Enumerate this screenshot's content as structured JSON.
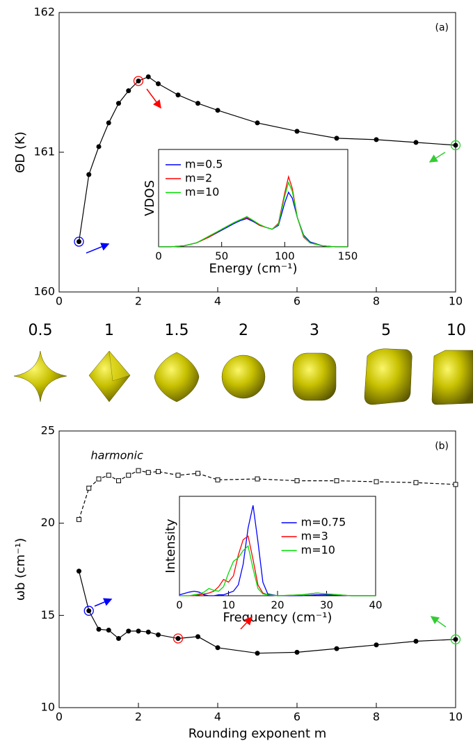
{
  "chart_data": [
    {
      "type": "line",
      "panel_label": "(a)",
      "ylabel": "ΘD (K)",
      "x": [
        0.5,
        0.75,
        1,
        1.25,
        1.5,
        1.75,
        2,
        2.25,
        2.5,
        3,
        3.5,
        4,
        5,
        6,
        7,
        8,
        9,
        10
      ],
      "series": [
        {
          "color": "#000000",
          "marker": "circle",
          "values": [
            160.36,
            160.84,
            161.04,
            161.21,
            161.35,
            161.44,
            161.51,
            161.54,
            161.49,
            161.41,
            161.35,
            161.3,
            161.21,
            161.15,
            161.1,
            161.09,
            161.07,
            161.05
          ],
          "ring_colors": [
            "#0000ff",
            null,
            null,
            null,
            null,
            null,
            "#ff0000",
            null,
            null,
            null,
            null,
            null,
            null,
            null,
            null,
            null,
            null,
            "#33cc33"
          ]
        }
      ],
      "xlim": [
        0,
        10
      ],
      "xticks": [
        0,
        2,
        4,
        6,
        8,
        10
      ],
      "ylim": [
        160,
        162
      ],
      "yticks": [
        160,
        161,
        162
      ]
    },
    {
      "type": "line",
      "xlabel": "Energy (cm⁻¹)",
      "ylabel": "VDOS",
      "legend": "upper left",
      "x": [
        0,
        10,
        20,
        30,
        40,
        50,
        60,
        65,
        70,
        75,
        80,
        85,
        90,
        95,
        100,
        103,
        106,
        110,
        115,
        120,
        130,
        140,
        150
      ],
      "series": [
        {
          "name": "m=0.5",
          "color": "#0000ff",
          "values": [
            0,
            0,
            0.01,
            0.04,
            0.1,
            0.17,
            0.24,
            0.27,
            0.29,
            0.26,
            0.22,
            0.2,
            0.18,
            0.22,
            0.45,
            0.56,
            0.5,
            0.3,
            0.12,
            0.05,
            0.01,
            0,
            0
          ]
        },
        {
          "name": "m=2",
          "color": "#ff0000",
          "values": [
            0,
            0,
            0.01,
            0.04,
            0.1,
            0.18,
            0.25,
            0.28,
            0.3,
            0.27,
            0.22,
            0.2,
            0.18,
            0.24,
            0.55,
            0.72,
            0.6,
            0.3,
            0.1,
            0.04,
            0.01,
            0,
            0
          ]
        },
        {
          "name": "m=10",
          "color": "#00dd00",
          "values": [
            0,
            0,
            0.01,
            0.04,
            0.11,
            0.18,
            0.25,
            0.28,
            0.31,
            0.27,
            0.23,
            0.2,
            0.18,
            0.23,
            0.52,
            0.66,
            0.57,
            0.3,
            0.11,
            0.04,
            0.01,
            0,
            0
          ]
        }
      ],
      "xlim": [
        0,
        150
      ],
      "xticks": [
        0,
        50,
        100,
        150
      ],
      "ylim": [
        0,
        1
      ]
    },
    {
      "type": "line",
      "panel_label": "(b)",
      "xlabel": "Rounding exponent m",
      "ylabel": "ωb (cm⁻¹)",
      "x": [
        0.5,
        0.75,
        1,
        1.25,
        1.5,
        1.75,
        2,
        2.25,
        2.5,
        3,
        3.5,
        4,
        5,
        6,
        7,
        8,
        9,
        10
      ],
      "series": [
        {
          "name": "harmonic",
          "color": "#000000",
          "marker": "square",
          "dashed": true,
          "values": [
            20.2,
            21.9,
            22.4,
            22.6,
            22.3,
            22.6,
            22.85,
            22.75,
            22.8,
            22.6,
            22.7,
            22.35,
            22.4,
            22.3,
            22.3,
            22.25,
            22.2,
            22.1
          ]
        },
        {
          "color": "#000000",
          "marker": "circle",
          "values": [
            17.4,
            15.25,
            14.25,
            14.2,
            13.75,
            14.15,
            14.15,
            14.1,
            13.95,
            13.75,
            13.85,
            13.25,
            12.95,
            13.0,
            13.2,
            13.4,
            13.6,
            13.7
          ],
          "ring_colors": [
            null,
            "#0000ff",
            null,
            null,
            null,
            null,
            null,
            null,
            null,
            "#ff0000",
            null,
            null,
            null,
            null,
            null,
            null,
            null,
            "#33cc33"
          ]
        }
      ],
      "xlim": [
        0,
        10
      ],
      "xticks": [
        0,
        2,
        4,
        6,
        8,
        10
      ],
      "ylim": [
        10,
        25
      ],
      "yticks": [
        10,
        15,
        20,
        25
      ]
    },
    {
      "type": "line",
      "xlabel": "Frequency (cm⁻¹)",
      "ylabel": "Intensity",
      "legend": "upper right",
      "x": [
        0,
        2,
        3,
        4,
        5,
        6,
        7,
        8,
        9,
        10,
        11,
        12,
        13,
        14,
        15,
        16,
        17,
        18,
        20,
        25,
        28,
        30,
        35,
        40
      ],
      "series": [
        {
          "name": "m=0.75",
          "color": "#0000ff",
          "values": [
            0.01,
            0.04,
            0.05,
            0.04,
            0.01,
            0,
            0,
            0.01,
            0.01,
            0.03,
            0.05,
            0.12,
            0.35,
            0.75,
            1.0,
            0.6,
            0.15,
            0.02,
            0,
            0,
            0.01,
            0.01,
            0,
            0
          ]
        },
        {
          "name": "m=3",
          "color": "#ff0000",
          "values": [
            0,
            0,
            0,
            0.01,
            0.02,
            0.03,
            0.05,
            0.1,
            0.18,
            0.15,
            0.22,
            0.45,
            0.62,
            0.66,
            0.4,
            0.12,
            0.03,
            0.01,
            0,
            0.01,
            0.03,
            0.02,
            0,
            0
          ]
        },
        {
          "name": "m=10",
          "color": "#00dd00",
          "values": [
            0,
            0,
            0.01,
            0.02,
            0.04,
            0.08,
            0.06,
            0.05,
            0.1,
            0.25,
            0.38,
            0.42,
            0.5,
            0.55,
            0.3,
            0.08,
            0.02,
            0.01,
            0,
            0.01,
            0.03,
            0.02,
            0,
            0
          ]
        }
      ],
      "xlim": [
        0,
        40
      ],
      "xticks": [
        0,
        10,
        20,
        30,
        40
      ],
      "ylim": [
        0,
        1.1
      ]
    }
  ],
  "shape_labels": [
    "0.5",
    "1",
    "1.5",
    "2",
    "3",
    "5",
    "10"
  ]
}
